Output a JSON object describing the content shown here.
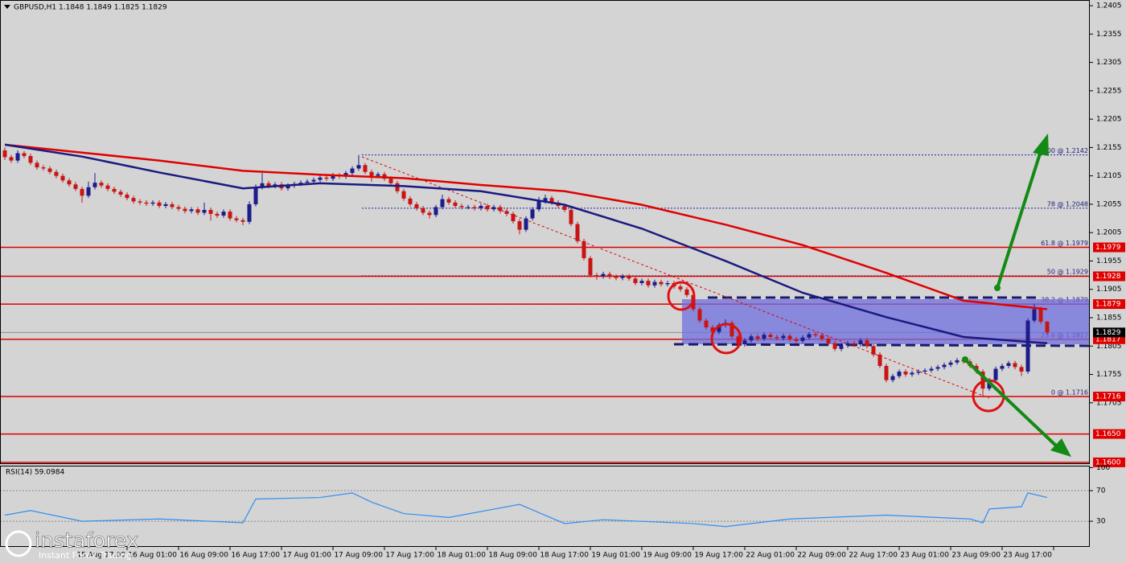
{
  "chart_data": {
    "type": "candlestick",
    "header": "GBPUSD,H1  1.1848 1.1849 1.1825 1.1829",
    "up_color": "#1c1c8c",
    "down_color": "#c81414",
    "xlim": [
      -0.75,
      168.625
    ],
    "ylim": [
      1.1597,
      1.2415
    ],
    "yticks": [
      1.2405,
      1.2355,
      1.2305,
      1.2255,
      1.2205,
      1.2155,
      1.2105,
      1.2055,
      1.2005,
      1.1955,
      1.1905,
      1.1855,
      1.1805,
      1.1755,
      1.1705
    ],
    "xticks": [
      {
        "value": 19,
        "label": "15 Aug 17:00"
      },
      {
        "value": 27,
        "label": "16 Aug 01:00"
      },
      {
        "value": 35,
        "label": "16 Aug 09:00"
      },
      {
        "value": 43,
        "label": "16 Aug 17:00"
      },
      {
        "value": 51,
        "label": "17 Aug 01:00"
      },
      {
        "value": 59,
        "label": "17 Aug 09:00"
      },
      {
        "value": 67,
        "label": "17 Aug 17:00"
      },
      {
        "value": 75,
        "label": "18 Aug 01:00"
      },
      {
        "value": 83,
        "label": "18 Aug 09:00"
      },
      {
        "value": 91,
        "label": "18 Aug 17:00"
      },
      {
        "value": 99,
        "label": "19 Aug 01:00"
      },
      {
        "value": 107,
        "label": "19 Aug 09:00"
      },
      {
        "value": 115,
        "label": "19 Aug 17:00"
      },
      {
        "value": 123,
        "label": "22 Aug 01:00"
      },
      {
        "value": 131,
        "label": "22 Aug 09:00"
      },
      {
        "value": 139,
        "label": "22 Aug 17:00"
      },
      {
        "value": 147,
        "label": "23 Aug 01:00"
      },
      {
        "value": 155,
        "label": "23 Aug 09:00"
      },
      {
        "value": 163,
        "label": "23 Aug 17:00"
      }
    ],
    "ohlc": [
      [
        1.215,
        1.2155,
        1.2133,
        1.2138
      ],
      [
        1.2138,
        1.2142,
        1.2128,
        1.2132
      ],
      [
        1.2132,
        1.215,
        1.2128,
        1.2145
      ],
      [
        1.2145,
        1.2149,
        1.2136,
        1.214
      ],
      [
        1.214,
        1.2144,
        1.2124,
        1.2128
      ],
      [
        1.2128,
        1.2132,
        1.2116,
        1.212
      ],
      [
        1.212,
        1.2124,
        1.2114,
        1.2118
      ],
      [
        1.2118,
        1.2122,
        1.2108,
        1.2112
      ],
      [
        1.2112,
        1.2116,
        1.2101,
        1.2105
      ],
      [
        1.2105,
        1.2109,
        1.2093,
        1.2097
      ],
      [
        1.2097,
        1.2101,
        1.2086,
        1.209
      ],
      [
        1.209,
        1.2094,
        1.2078,
        1.2082
      ],
      [
        1.2082,
        1.2086,
        1.2058,
        1.207
      ],
      [
        1.207,
        1.2095,
        1.2066,
        1.2085
      ],
      [
        1.2085,
        1.211,
        1.2081,
        1.2093
      ],
      [
        1.2093,
        1.2097,
        1.2084,
        1.2088
      ],
      [
        1.2088,
        1.2092,
        1.2078,
        1.2082
      ],
      [
        1.2082,
        1.2086,
        1.2073,
        1.2077
      ],
      [
        1.2077,
        1.2081,
        1.2068,
        1.2072
      ],
      [
        1.2072,
        1.2076,
        1.2062,
        1.2066
      ],
      [
        1.2066,
        1.207,
        1.2056,
        1.206
      ],
      [
        1.206,
        1.2064,
        1.2054,
        1.2058
      ],
      [
        1.2058,
        1.2062,
        1.2052,
        1.2056
      ],
      [
        1.2056,
        1.2062,
        1.2052,
        1.2058
      ],
      [
        1.2058,
        1.2062,
        1.2048,
        1.2052
      ],
      [
        1.2052,
        1.2059,
        1.2048,
        1.2055
      ],
      [
        1.2055,
        1.2059,
        1.2046,
        1.205
      ],
      [
        1.205,
        1.2054,
        1.2043,
        1.2047
      ],
      [
        1.2047,
        1.2051,
        1.2039,
        1.2043
      ],
      [
        1.2043,
        1.205,
        1.2039,
        1.2046
      ],
      [
        1.2046,
        1.205,
        1.2036,
        1.204
      ],
      [
        1.204,
        1.2058,
        1.2036,
        1.2045
      ],
      [
        1.2045,
        1.2049,
        1.2026,
        1.2038
      ],
      [
        1.2038,
        1.2042,
        1.2031,
        1.2035
      ],
      [
        1.2035,
        1.2046,
        1.2031,
        1.2042
      ],
      [
        1.2042,
        1.2046,
        1.2026,
        1.203
      ],
      [
        1.203,
        1.2034,
        1.2023,
        1.2027
      ],
      [
        1.2027,
        1.2031,
        1.2018,
        1.2024
      ],
      [
        1.2024,
        1.206,
        1.202,
        1.2055
      ],
      [
        1.2055,
        1.209,
        1.2051,
        1.2085
      ],
      [
        1.2085,
        1.211,
        1.2081,
        1.2092
      ],
      [
        1.2092,
        1.2096,
        1.2083,
        1.2087
      ],
      [
        1.2087,
        1.2094,
        1.2083,
        1.209
      ],
      [
        1.209,
        1.2094,
        1.2079,
        1.2083
      ],
      [
        1.2083,
        1.2092,
        1.2079,
        1.2088
      ],
      [
        1.2088,
        1.2095,
        1.2084,
        1.2091
      ],
      [
        1.2091,
        1.2097,
        1.2087,
        1.2093
      ],
      [
        1.2093,
        1.2099,
        1.2089,
        1.2095
      ],
      [
        1.2095,
        1.2102,
        1.2091,
        1.2098
      ],
      [
        1.2098,
        1.2106,
        1.2094,
        1.2102
      ],
      [
        1.2102,
        1.2106,
        1.2096,
        1.21
      ],
      [
        1.21,
        1.211,
        1.2096,
        1.2106
      ],
      [
        1.2106,
        1.211,
        1.21,
        1.2104
      ],
      [
        1.2104,
        1.2114,
        1.21,
        1.211
      ],
      [
        1.211,
        1.2122,
        1.2106,
        1.2118
      ],
      [
        1.2118,
        1.2142,
        1.2114,
        1.2124
      ],
      [
        1.2124,
        1.2128,
        1.2108,
        1.2112
      ],
      [
        1.2112,
        1.2116,
        1.2095,
        1.2105
      ],
      [
        1.2105,
        1.2112,
        1.2101,
        1.2108
      ],
      [
        1.2108,
        1.2112,
        1.2096,
        1.21
      ],
      [
        1.21,
        1.2104,
        1.2088,
        1.2092
      ],
      [
        1.2092,
        1.2096,
        1.2074,
        1.2078
      ],
      [
        1.2078,
        1.2082,
        1.2061,
        1.2065
      ],
      [
        1.2065,
        1.2069,
        1.2051,
        1.2055
      ],
      [
        1.2055,
        1.2059,
        1.2044,
        1.2048
      ],
      [
        1.2048,
        1.2052,
        1.2036,
        1.204
      ],
      [
        1.204,
        1.2044,
        1.203,
        1.2036
      ],
      [
        1.2036,
        1.2054,
        1.2032,
        1.205
      ],
      [
        1.205,
        1.2072,
        1.2046,
        1.2064
      ],
      [
        1.2064,
        1.2068,
        1.2054,
        1.2058
      ],
      [
        1.2058,
        1.2062,
        1.2048,
        1.2052
      ],
      [
        1.2052,
        1.2056,
        1.2046,
        1.205
      ],
      [
        1.205,
        1.2054,
        1.2046,
        1.205
      ],
      [
        1.205,
        1.2054,
        1.2044,
        1.2048
      ],
      [
        1.2048,
        1.2056,
        1.2044,
        1.2052
      ],
      [
        1.2052,
        1.2056,
        1.2042,
        1.2046
      ],
      [
        1.2046,
        1.2054,
        1.2042,
        1.205
      ],
      [
        1.205,
        1.2054,
        1.2039,
        1.2043
      ],
      [
        1.2043,
        1.2047,
        1.2034,
        1.2038
      ],
      [
        1.2038,
        1.2042,
        1.2021,
        1.2025
      ],
      [
        1.2025,
        1.2029,
        1.2002,
        1.201
      ],
      [
        1.201,
        1.2034,
        1.2006,
        1.203
      ],
      [
        1.203,
        1.205,
        1.2026,
        1.2046
      ],
      [
        1.2046,
        1.2068,
        1.2042,
        1.206
      ],
      [
        1.206,
        1.2072,
        1.2056,
        1.2066
      ],
      [
        1.2066,
        1.207,
        1.2054,
        1.2058
      ],
      [
        1.2058,
        1.2062,
        1.2048,
        1.2052
      ],
      [
        1.2052,
        1.2056,
        1.2041,
        1.2045
      ],
      [
        1.2045,
        1.2049,
        1.2016,
        1.202
      ],
      [
        1.202,
        1.2024,
        1.1986,
        1.199
      ],
      [
        1.199,
        1.1994,
        1.1956,
        1.196
      ],
      [
        1.196,
        1.1964,
        1.1926,
        1.193
      ],
      [
        1.193,
        1.1934,
        1.1922,
        1.1928
      ],
      [
        1.1928,
        1.1936,
        1.1924,
        1.1932
      ],
      [
        1.1932,
        1.1936,
        1.1923,
        1.1927
      ],
      [
        1.1927,
        1.1931,
        1.1921,
        1.1925
      ],
      [
        1.1925,
        1.1932,
        1.1921,
        1.1928
      ],
      [
        1.1928,
        1.1932,
        1.192,
        1.1924
      ],
      [
        1.1924,
        1.1928,
        1.1912,
        1.1916
      ],
      [
        1.1916,
        1.1924,
        1.1912,
        1.192
      ],
      [
        1.192,
        1.1924,
        1.1908,
        1.1912
      ],
      [
        1.1912,
        1.1922,
        1.1908,
        1.1918
      ],
      [
        1.1918,
        1.1922,
        1.191,
        1.1914
      ],
      [
        1.1914,
        1.192,
        1.191,
        1.1916
      ],
      [
        1.1916,
        1.192,
        1.1906,
        1.191
      ],
      [
        1.191,
        1.1914,
        1.1901,
        1.1905
      ],
      [
        1.1905,
        1.1909,
        1.1891,
        1.1895
      ],
      [
        1.1895,
        1.1899,
        1.1866,
        1.187
      ],
      [
        1.187,
        1.1874,
        1.1846,
        1.185
      ],
      [
        1.185,
        1.1854,
        1.1834,
        1.1838
      ],
      [
        1.1838,
        1.1842,
        1.1826,
        1.183
      ],
      [
        1.183,
        1.1846,
        1.1826,
        1.1842
      ],
      [
        1.1842,
        1.1852,
        1.1838,
        1.1846
      ],
      [
        1.1846,
        1.185,
        1.1818,
        1.1822
      ],
      [
        1.1822,
        1.1826,
        1.1802,
        1.1808
      ],
      [
        1.1808,
        1.1819,
        1.1804,
        1.1815
      ],
      [
        1.1815,
        1.1826,
        1.1811,
        1.1822
      ],
      [
        1.1822,
        1.1826,
        1.1814,
        1.1818
      ],
      [
        1.1818,
        1.1829,
        1.1814,
        1.1825
      ],
      [
        1.1825,
        1.1829,
        1.1817,
        1.1821
      ],
      [
        1.1821,
        1.1825,
        1.1815,
        1.1819
      ],
      [
        1.1819,
        1.1827,
        1.1815,
        1.1823
      ],
      [
        1.1823,
        1.1827,
        1.1813,
        1.1817
      ],
      [
        1.1817,
        1.1821,
        1.181,
        1.1814
      ],
      [
        1.1814,
        1.1824,
        1.181,
        1.182
      ],
      [
        1.182,
        1.183,
        1.1816,
        1.1826
      ],
      [
        1.1826,
        1.183,
        1.182,
        1.1824
      ],
      [
        1.1824,
        1.1828,
        1.1814,
        1.1818
      ],
      [
        1.1818,
        1.1822,
        1.1806,
        1.181
      ],
      [
        1.181,
        1.1814,
        1.1796,
        1.18
      ],
      [
        1.18,
        1.181,
        1.1796,
        1.1806
      ],
      [
        1.1806,
        1.1814,
        1.1802,
        1.181
      ],
      [
        1.181,
        1.1814,
        1.1804,
        1.1808
      ],
      [
        1.1808,
        1.1819,
        1.1804,
        1.1815
      ],
      [
        1.1815,
        1.1819,
        1.1801,
        1.1805
      ],
      [
        1.1805,
        1.1809,
        1.1786,
        1.179
      ],
      [
        1.179,
        1.1794,
        1.1766,
        1.177
      ],
      [
        1.177,
        1.1774,
        1.1741,
        1.1745
      ],
      [
        1.1745,
        1.1756,
        1.1741,
        1.1752
      ],
      [
        1.1752,
        1.1764,
        1.1748,
        1.176
      ],
      [
        1.176,
        1.1764,
        1.1751,
        1.1755
      ],
      [
        1.1755,
        1.1762,
        1.1751,
        1.1758
      ],
      [
        1.1758,
        1.1764,
        1.1754,
        1.176
      ],
      [
        1.176,
        1.1766,
        1.1756,
        1.1762
      ],
      [
        1.1762,
        1.1769,
        1.1758,
        1.1765
      ],
      [
        1.1765,
        1.1772,
        1.1761,
        1.1768
      ],
      [
        1.1768,
        1.1776,
        1.1764,
        1.1772
      ],
      [
        1.1772,
        1.178,
        1.1768,
        1.1776
      ],
      [
        1.1776,
        1.1784,
        1.1772,
        1.178
      ],
      [
        1.178,
        1.1784,
        1.1774,
        1.1778
      ],
      [
        1.1778,
        1.1782,
        1.1766,
        1.177
      ],
      [
        1.177,
        1.1774,
        1.1756,
        1.176
      ],
      [
        1.176,
        1.1764,
        1.1716,
        1.173
      ],
      [
        1.173,
        1.1749,
        1.1726,
        1.1745
      ],
      [
        1.1745,
        1.1769,
        1.1741,
        1.1765
      ],
      [
        1.1765,
        1.1774,
        1.1761,
        1.177
      ],
      [
        1.177,
        1.1779,
        1.1766,
        1.1775
      ],
      [
        1.1775,
        1.1779,
        1.1764,
        1.1768
      ],
      [
        1.1768,
        1.1772,
        1.1752,
        1.176
      ],
      [
        1.176,
        1.1854,
        1.1756,
        1.185
      ],
      [
        1.185,
        1.1879,
        1.1846,
        1.187
      ],
      [
        1.187,
        1.1874,
        1.1844,
        1.1848
      ],
      [
        1.1848,
        1.1849,
        1.1825,
        1.1829
      ]
    ],
    "moving_averages": [
      {
        "color": "#e00000",
        "x": [
          0,
          12,
          24,
          37,
          49,
          62,
          74,
          87,
          99,
          112,
          124,
          137,
          149,
          162
        ],
        "values": [
          1.216,
          1.2146,
          1.2132,
          1.2114,
          1.2107,
          1.2101,
          1.2089,
          1.2078,
          1.2054,
          1.2019,
          1.1983,
          1.1934,
          1.1885,
          1.187
        ]
      },
      {
        "color": "#1a1a80",
        "x": [
          0,
          12,
          24,
          37,
          49,
          62,
          74,
          87,
          99,
          112,
          124,
          137,
          149,
          162
        ],
        "values": [
          1.216,
          1.2139,
          1.2111,
          1.2083,
          1.2092,
          1.2087,
          1.2078,
          1.2054,
          1.2012,
          1.1955,
          1.1899,
          1.1856,
          1.1821,
          1.181
        ]
      }
    ],
    "levels": [
      1.1979,
      1.1928,
      1.1879,
      1.1817,
      1.1716,
      {
        "value": 1.165,
        "label": "1.1650"
      },
      {
        "value": 1.16,
        "label": "1.1600"
      }
    ],
    "level_color": "#e00000",
    "fib_levels": [
      {
        "value": 1.2142,
        "label": "100 @ 1.2142"
      },
      {
        "value": 1.2048,
        "label": "78 @ 1.2048"
      },
      {
        "value": 1.1979,
        "label": "61.8 @ 1.1979"
      },
      {
        "value": 1.1929,
        "label": "50 @ 1.1929"
      },
      {
        "value": 1.1879,
        "label": "38.2 @ 1.1879"
      },
      {
        "value": 1.1817,
        "label": "23.6 @ 1.1817"
      },
      {
        "value": 1.1716,
        "label": "0 @ 1.1716"
      }
    ],
    "current_price": 1.1829,
    "rsi": {
      "label": "RSI(14) 59.0984",
      "color": "#2f8ff0",
      "ylim": [
        -3.5,
        101.5
      ],
      "yticks": [
        100,
        70,
        30
      ],
      "levels": [
        70,
        30
      ],
      "x": [
        0,
        4,
        12,
        24,
        37,
        39,
        49,
        54,
        57,
        62,
        69,
        80,
        87,
        93,
        107,
        112,
        122,
        137,
        150,
        152,
        153,
        158,
        159,
        162
      ],
      "values": [
        38,
        44,
        30,
        33,
        28,
        59,
        61,
        67,
        55,
        40,
        35,
        52,
        27,
        32,
        27,
        23,
        33,
        38,
        33,
        28,
        46,
        49,
        67,
        61
      ]
    }
  },
  "logo": {
    "name": "instaforex",
    "tagline": "Instant Forex Trading"
  }
}
